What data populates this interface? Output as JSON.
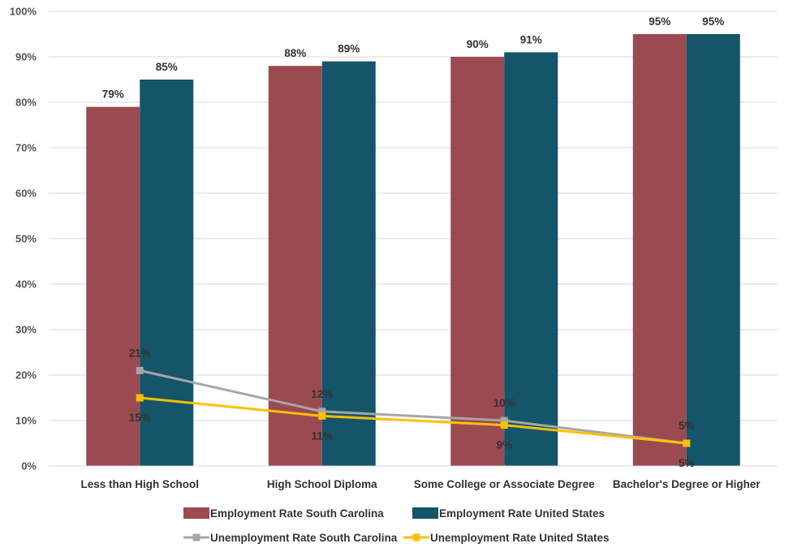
{
  "chart_data": {
    "type": "bar",
    "categories": [
      "Less than High School",
      "High School Diploma",
      "Some College or Associate Degree",
      "Bachelor's Degree or Higher"
    ],
    "ylim": [
      0,
      100
    ],
    "yticks": [
      "0%",
      "10%",
      "20%",
      "30%",
      "40%",
      "50%",
      "60%",
      "70%",
      "80%",
      "90%",
      "100%"
    ],
    "grid": true,
    "legend_position": "bottom",
    "series": [
      {
        "name": "Employment Rate South Carolina",
        "type": "bar",
        "color": "#9B4A52",
        "values": [
          79,
          88,
          90,
          95
        ],
        "labels": [
          "79%",
          "88%",
          "90%",
          "95%"
        ]
      },
      {
        "name": "Employment Rate United States",
        "type": "bar",
        "color": "#145569",
        "values": [
          85,
          89,
          91,
          95
        ],
        "labels": [
          "85%",
          "89%",
          "91%",
          "95%"
        ]
      },
      {
        "name": "Unemployment Rate South Carolina",
        "type": "line",
        "color": "#A6A6A6",
        "values": [
          21,
          12,
          10,
          5
        ],
        "labels": [
          "21%",
          "12%",
          "10%",
          "5%"
        ]
      },
      {
        "name": "Unemployment Rate United States",
        "type": "line",
        "color": "#FFC000",
        "values": [
          15,
          11,
          9,
          5
        ],
        "labels": [
          "15%",
          "11%",
          "9%",
          "5%"
        ]
      }
    ]
  }
}
